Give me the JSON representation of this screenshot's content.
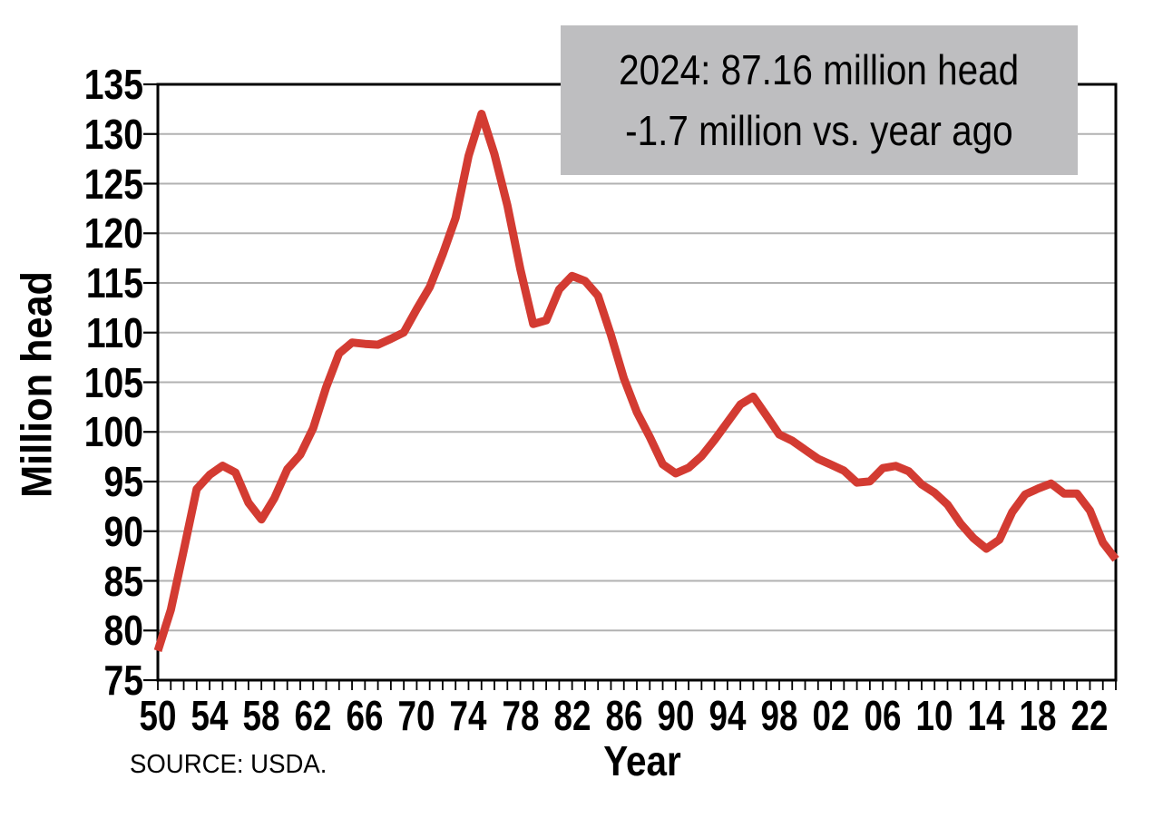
{
  "source_note": "SOURCE: USDA.",
  "colors": {
    "line": "#d33b32",
    "grid": "#b2b2b2",
    "axis": "#000000",
    "annotation_bg": "#bebec0",
    "text": "#000000"
  },
  "chart_data": {
    "type": "line",
    "title": "",
    "xlabel": "Year",
    "ylabel": "Million head",
    "source": "SOURCE: USDA.",
    "xlim": [
      1950,
      2024
    ],
    "ylim": [
      75,
      135
    ],
    "grid": "horizontal",
    "legend": "none",
    "annotation": {
      "line1": "2024: 87.16 million head",
      "line2": "-1.7 million vs. year ago"
    },
    "y_ticks": [
      75,
      80,
      85,
      90,
      95,
      100,
      105,
      110,
      115,
      120,
      125,
      130,
      135
    ],
    "x_ticks": {
      "years": [
        1950,
        1954,
        1958,
        1962,
        1966,
        1970,
        1974,
        1978,
        1982,
        1986,
        1990,
        1994,
        1998,
        2002,
        2006,
        2010,
        2014,
        2018,
        2022
      ],
      "labels": [
        "50",
        "54",
        "58",
        "62",
        "66",
        "70",
        "74",
        "78",
        "82",
        "86",
        "90",
        "94",
        "98",
        "02",
        "06",
        "10",
        "14",
        "18",
        "22"
      ]
    },
    "minor_x_tick_every_year": true,
    "series": [
      {
        "x": [
          1950,
          1951,
          1952,
          1953,
          1954,
          1955,
          1956,
          1957,
          1958,
          1959,
          1960,
          1961,
          1962,
          1963,
          1964,
          1965,
          1966,
          1967,
          1968,
          1969,
          1970,
          1971,
          1972,
          1973,
          1974,
          1975,
          1976,
          1977,
          1978,
          1979,
          1980,
          1981,
          1982,
          1983,
          1984,
          1985,
          1986,
          1987,
          1988,
          1989,
          1990,
          1991,
          1992,
          1993,
          1994,
          1995,
          1996,
          1997,
          1998,
          1999,
          2000,
          2001,
          2002,
          2003,
          2004,
          2005,
          2006,
          2007,
          2008,
          2009,
          2010,
          2011,
          2012,
          2013,
          2014,
          2015,
          2016,
          2017,
          2018,
          2019,
          2020,
          2021,
          2022,
          2023,
          2024
        ],
        "values": [
          77.96,
          82.08,
          88.07,
          94.24,
          95.68,
          96.59,
          95.9,
          92.86,
          91.18,
          93.32,
          96.24,
          97.7,
          100.37,
          104.49,
          107.9,
          109.0,
          108.86,
          108.78,
          109.37,
          110.01,
          112.37,
          114.58,
          117.86,
          121.54,
          127.79,
          132.03,
          127.98,
          122.81,
          116.38,
          110.86,
          111.24,
          114.35,
          115.7,
          115.2,
          113.7,
          109.75,
          105.38,
          102.0,
          99.48,
          96.74,
          95.82,
          96.39,
          97.56,
          99.18,
          100.97,
          102.76,
          103.55,
          101.66,
          99.74,
          99.12,
          98.2,
          97.28,
          96.7,
          96.1,
          94.89,
          95.02,
          96.35,
          96.57,
          96.03,
          94.72,
          93.88,
          92.68,
          90.77,
          89.3,
          88.24,
          89.14,
          91.92,
          93.7,
          94.3,
          94.8,
          93.79,
          93.79,
          92.08,
          88.86,
          87.16
        ]
      }
    ]
  }
}
